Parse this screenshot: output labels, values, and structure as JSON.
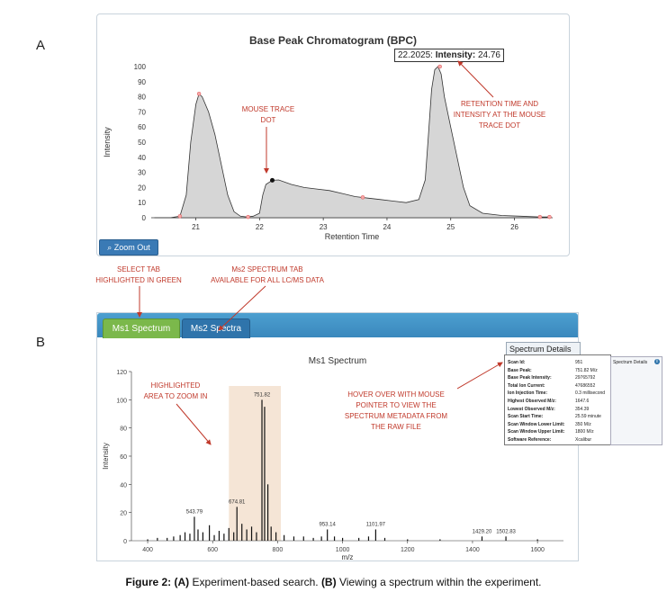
{
  "panel_labels": {
    "a": "A",
    "b": "B"
  },
  "chromatogram": {
    "title": "Base Peak Chromatogram (BPC)",
    "tooltip": {
      "time": "22.2025:",
      "label": "Intensity:",
      "value": "24.76"
    },
    "zoom_out_label": "Zoom Out",
    "ylabel": "Intensity",
    "xlabel": "Retention Time"
  },
  "annotations": {
    "mouse_trace": [
      "MOUSE TRACE",
      "DOT"
    ],
    "retention": [
      "RETENTION TIME AND",
      "INTENSITY AT THE MOUSE",
      "TRACE DOT"
    ],
    "select_tab": [
      "SELECT TAB",
      "HIGHLIGHTED IN GREEN"
    ],
    "ms2_tab": [
      "Ms2 SPECTRUM TAB",
      "AVAILABLE FOR ALL LC/MS DATA"
    ],
    "highlight": [
      "HIGHLIGHTED",
      "AREA TO ZOOM IN"
    ],
    "hover": [
      "HOVER OVER WITH MOUSE",
      "POINTER TO VIEW THE",
      "SPECTRUM METADATA FROM",
      "THE RAW FILE"
    ]
  },
  "tabs": {
    "ms1": "Ms1 Spectrum",
    "ms2": "Ms2 Spectra"
  },
  "spectrum": {
    "title": "Ms1 Spectrum",
    "ylabel": "Intensity",
    "xlabel": "m/z",
    "details_button": "Spectrum Details"
  },
  "metadata": [
    {
      "key": "Scan Id:",
      "value": "951"
    },
    {
      "key": "Base Peak:",
      "value": "751.82 M/z"
    },
    {
      "key": "Base Peak Intensity:",
      "value": "29765792"
    },
    {
      "key": "Total Ion Current:",
      "value": "47686552"
    },
    {
      "key": "Ion Injection Time:",
      "value": "0.3 millisecond"
    },
    {
      "key": "Highest Observed M/z:",
      "value": "1647.6"
    },
    {
      "key": "Lowest Observed M/z:",
      "value": "354.39"
    },
    {
      "key": "Scan Start Time:",
      "value": "25.59 minute"
    },
    {
      "key": "Scan Window Lower Limit:",
      "value": "350 M/z"
    },
    {
      "key": "Scan Window Upper Limit:",
      "value": "1800 M/z"
    },
    {
      "key": "Software Reference:",
      "value": "Xcalibur"
    }
  ],
  "side_panel_label": "Spectrum Details",
  "caption": {
    "fig": "Figure 2:",
    "a": "(A)",
    "a_text": " Experiment-based search. ",
    "b": "(B)",
    "b_text": " Viewing a spectrum within the experiment."
  },
  "chart_data": [
    {
      "type": "area",
      "title": "Base Peak Chromatogram (BPC)",
      "xlabel": "Retention Time",
      "ylabel": "Intensity",
      "xlim": [
        20.3,
        26.6
      ],
      "ylim": [
        0,
        100
      ],
      "x_ticks": [
        21,
        22,
        23,
        24,
        25,
        26
      ],
      "y_ticks": [
        0,
        10,
        20,
        30,
        40,
        50,
        60,
        70,
        80,
        90,
        100
      ],
      "x": [
        20.35,
        20.6,
        20.75,
        20.85,
        20.92,
        21.0,
        21.05,
        21.1,
        21.2,
        21.3,
        21.4,
        21.5,
        21.6,
        21.7,
        21.8,
        21.9,
        22.0,
        22.05,
        22.1,
        22.2,
        22.3,
        22.5,
        22.7,
        22.9,
        23.1,
        23.3,
        23.5,
        23.7,
        23.9,
        24.1,
        24.3,
        24.5,
        24.6,
        24.65,
        24.7,
        24.75,
        24.8,
        24.85,
        24.9,
        25.0,
        25.1,
        25.2,
        25.3,
        25.5,
        25.8,
        26.1,
        26.4,
        26.55
      ],
      "y": [
        0,
        0,
        1,
        15,
        50,
        75,
        82,
        80,
        70,
        55,
        35,
        15,
        4,
        1,
        0.5,
        1,
        3,
        15,
        22,
        24.76,
        25,
        22,
        20,
        19,
        18,
        16,
        14,
        13,
        12,
        11,
        10,
        12,
        25,
        55,
        85,
        98,
        100,
        95,
        80,
        60,
        40,
        20,
        8,
        3,
        1.5,
        1,
        0.5,
        0.5
      ],
      "markers": [
        {
          "x": 20.75,
          "y": 1
        },
        {
          "x": 21.05,
          "y": 82
        },
        {
          "x": 21.82,
          "y": 0.5
        },
        {
          "x": 22.2,
          "y": 24.76
        },
        {
          "x": 23.62,
          "y": 13.5
        },
        {
          "x": 24.83,
          "y": 100
        },
        {
          "x": 26.4,
          "y": 0.5
        },
        {
          "x": 26.55,
          "y": 0.5
        }
      ],
      "trace_dot": {
        "x": 22.2,
        "y": 24.76
      }
    },
    {
      "type": "bar",
      "title": "Ms1 Spectrum",
      "xlabel": "m/z",
      "ylabel": "Intensity",
      "xlim": [
        350,
        1680
      ],
      "ylim": [
        0,
        120
      ],
      "x_ticks": [
        400,
        600,
        800,
        1000,
        1200,
        1400,
        1600
      ],
      "y_ticks": [
        0,
        20,
        40,
        60,
        80,
        100,
        120
      ],
      "highlight_range": [
        650,
        810
      ],
      "peaks": [
        {
          "mz": 400,
          "i": 1
        },
        {
          "mz": 430,
          "i": 2
        },
        {
          "mz": 460,
          "i": 2
        },
        {
          "mz": 480,
          "i": 3
        },
        {
          "mz": 500,
          "i": 4
        },
        {
          "mz": 515,
          "i": 6
        },
        {
          "mz": 530,
          "i": 5
        },
        {
          "mz": 543.79,
          "i": 17
        },
        {
          "mz": 555,
          "i": 8
        },
        {
          "mz": 570,
          "i": 6
        },
        {
          "mz": 590,
          "i": 11
        },
        {
          "mz": 605,
          "i": 4
        },
        {
          "mz": 620,
          "i": 7
        },
        {
          "mz": 635,
          "i": 5
        },
        {
          "mz": 650,
          "i": 9
        },
        {
          "mz": 665,
          "i": 6
        },
        {
          "mz": 674.81,
          "i": 24
        },
        {
          "mz": 690,
          "i": 12
        },
        {
          "mz": 705,
          "i": 8
        },
        {
          "mz": 720,
          "i": 10
        },
        {
          "mz": 735,
          "i": 6
        },
        {
          "mz": 751.82,
          "i": 100
        },
        {
          "mz": 760,
          "i": 95
        },
        {
          "mz": 770,
          "i": 40
        },
        {
          "mz": 780,
          "i": 10
        },
        {
          "mz": 795,
          "i": 6
        },
        {
          "mz": 820,
          "i": 4
        },
        {
          "mz": 850,
          "i": 3
        },
        {
          "mz": 880,
          "i": 3
        },
        {
          "mz": 910,
          "i": 2
        },
        {
          "mz": 935,
          "i": 3
        },
        {
          "mz": 953.14,
          "i": 8
        },
        {
          "mz": 975,
          "i": 3
        },
        {
          "mz": 1000,
          "i": 2
        },
        {
          "mz": 1050,
          "i": 2
        },
        {
          "mz": 1080,
          "i": 3
        },
        {
          "mz": 1101.97,
          "i": 8
        },
        {
          "mz": 1130,
          "i": 2
        },
        {
          "mz": 1200,
          "i": 1
        },
        {
          "mz": 1300,
          "i": 1
        },
        {
          "mz": 1429.2,
          "i": 3
        },
        {
          "mz": 1502.83,
          "i": 3
        },
        {
          "mz": 1600,
          "i": 1
        }
      ],
      "peak_labels": [
        {
          "mz": 543.79,
          "text": "543.79"
        },
        {
          "mz": 674.81,
          "text": "674.81"
        },
        {
          "mz": 751.82,
          "text": "751.82"
        },
        {
          "mz": 953.14,
          "text": "953.14"
        },
        {
          "mz": 1101.97,
          "text": "1101.97"
        },
        {
          "mz": 1429.2,
          "text": "1429.20"
        },
        {
          "mz": 1502.83,
          "text": "1502.83"
        }
      ]
    }
  ]
}
